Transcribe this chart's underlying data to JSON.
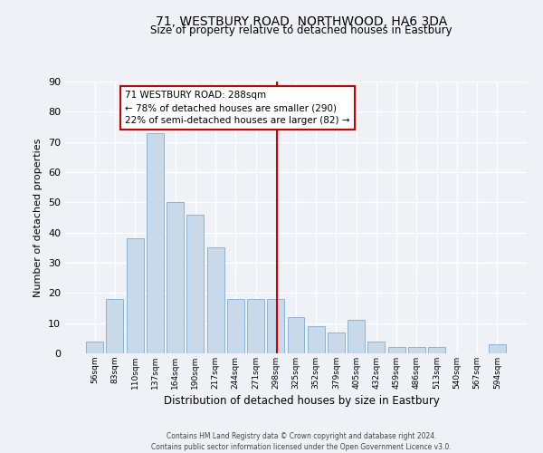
{
  "title": "71, WESTBURY ROAD, NORTHWOOD, HA6 3DA",
  "subtitle": "Size of property relative to detached houses in Eastbury",
  "xlabel": "Distribution of detached houses by size in Eastbury",
  "ylabel": "Number of detached properties",
  "bar_labels": [
    "56sqm",
    "83sqm",
    "110sqm",
    "137sqm",
    "164sqm",
    "190sqm",
    "217sqm",
    "244sqm",
    "271sqm",
    "298sqm",
    "325sqm",
    "352sqm",
    "379sqm",
    "405sqm",
    "432sqm",
    "459sqm",
    "486sqm",
    "513sqm",
    "540sqm",
    "567sqm",
    "594sqm"
  ],
  "bar_values": [
    4,
    18,
    38,
    73,
    50,
    46,
    35,
    18,
    18,
    18,
    12,
    9,
    7,
    11,
    4,
    2,
    2,
    2,
    0,
    0,
    3
  ],
  "bar_color": "#c8d9ea",
  "bar_edge_color": "#8ab4d4",
  "vline_color": "#cc0000",
  "annotation_text": "71 WESTBURY ROAD: 288sqm\n← 78% of detached houses are smaller (290)\n22% of semi-detached houses are larger (82) →",
  "annotation_box_facecolor": "#ffffff",
  "annotation_box_edgecolor": "#cc0000",
  "ylim": [
    0,
    90
  ],
  "yticks": [
    0,
    10,
    20,
    30,
    40,
    50,
    60,
    70,
    80,
    90
  ],
  "bg_color": "#eef2f7",
  "grid_color": "#ffffff",
  "footer_line1": "Contains HM Land Registry data © Crown copyright and database right 2024.",
  "footer_line2": "Contains public sector information licensed under the Open Government Licence v3.0."
}
